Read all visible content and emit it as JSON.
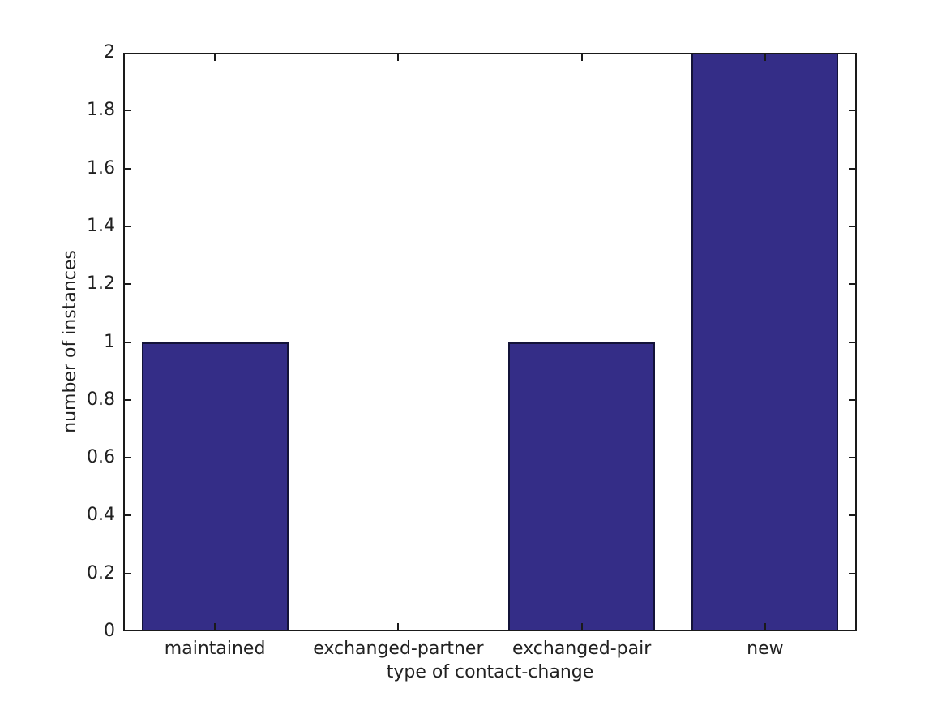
{
  "chart_data": {
    "type": "bar",
    "title": "",
    "categories": [
      "maintained",
      "exchanged-partner",
      "exchanged-pair",
      "new"
    ],
    "values": [
      1,
      0,
      1,
      2
    ],
    "xlabel": "type of contact-change",
    "ylabel": "number of instances",
    "ylim": [
      0,
      2
    ],
    "yticks": [
      0,
      0.2,
      0.4,
      0.6,
      0.8,
      1,
      1.2,
      1.4,
      1.6,
      1.8,
      2
    ],
    "ytick_labels": [
      "0",
      "0.2",
      "0.4",
      "0.6",
      "0.8",
      "1",
      "1.2",
      "1.4",
      "1.6",
      "1.8",
      "2"
    ],
    "grid": false,
    "legend": "none",
    "box": true,
    "tick_direction": "in",
    "bar_width_ratio": 0.8,
    "colors": {
      "bar_fill": "#342d87",
      "bar_edge": "#131339",
      "axis_line": "#1a1a1a",
      "text": "#212121",
      "background": "#ffffff"
    }
  }
}
